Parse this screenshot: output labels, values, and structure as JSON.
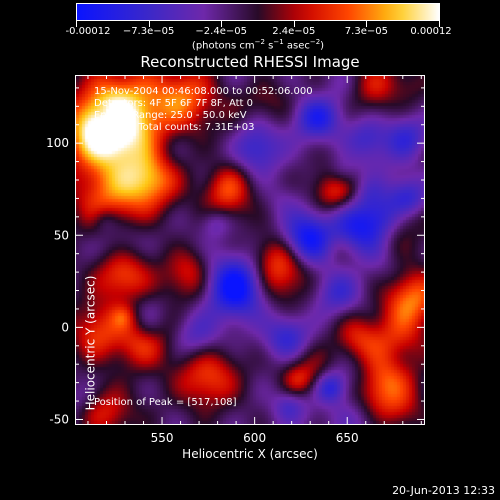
{
  "colorbar": {
    "tick_labels": [
      "-0.00012",
      "−7.3e−05",
      "−2.4e−05",
      "2.4e−05",
      "7.3e−05",
      "0.00012"
    ],
    "unit_text": "(photons cm",
    "unit_exp1": "−2",
    "unit_mid1": " s",
    "unit_exp2": "−1",
    "unit_mid2": " asec",
    "unit_exp3": "−2",
    "unit_end": ")"
  },
  "chart_data": {
    "type": "heatmap",
    "title": "Reconstructed RHESSI Image",
    "xlabel": "Heliocentric X (arcsec)",
    "ylabel": "Heliocentric Y (arcsec)",
    "x_ticks": [
      550,
      600,
      650
    ],
    "y_ticks": [
      -50,
      0,
      50,
      100
    ],
    "xlim": [
      503,
      692
    ],
    "ylim": [
      -53,
      137
    ],
    "value_range": [
      -0.00012,
      0.00012
    ],
    "colormap": "blue-purple-red-yellow-white",
    "peak_position": [
      517,
      108
    ],
    "annotations": [
      "15-Nov-2004 00:46:08.000 to 00:52:06.000",
      "Detectors: 4F 5F 6F 7F 8F, Att 0",
      "Energy Range: 25.0 - 50.0 keV",
      "Clean     Total counts: 7.31E+03",
      "Position of Peak = [517,108]"
    ]
  },
  "footer": {
    "timestamp": "20-Jun-2013 12:33"
  }
}
